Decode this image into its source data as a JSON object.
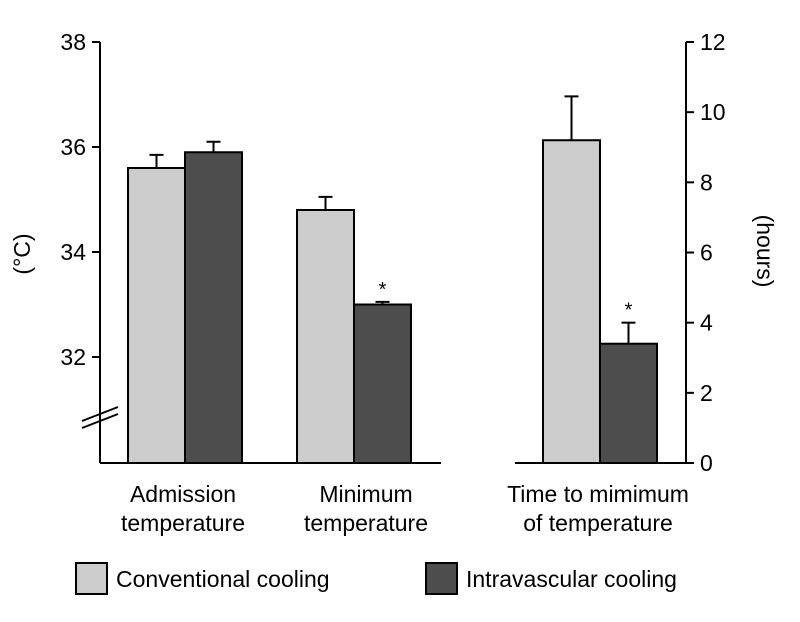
{
  "chart_data": {
    "type": "bar",
    "panels": [
      {
        "axis": "left",
        "ylabel": "(°C)",
        "ylim": [
          30,
          38
        ],
        "yticks": [
          "32",
          "34",
          "36",
          "38"
        ],
        "axis_break": true,
        "categories": [
          {
            "lines": [
              "Admission",
              "temperature"
            ],
            "values": [
              35.6,
              35.9
            ],
            "errors": [
              0.25,
              0.2
            ],
            "significant": [
              false,
              false
            ]
          },
          {
            "lines": [
              "Minimum",
              "temperature"
            ],
            "values": [
              34.8,
              33.0
            ],
            "errors": [
              0.25,
              0.05
            ],
            "significant": [
              false,
              true
            ]
          }
        ]
      },
      {
        "axis": "right",
        "ylabel": "(hours)",
        "ylim": [
          0,
          12
        ],
        "yticks": [
          "0",
          "2",
          "4",
          "6",
          "8",
          "10",
          "12"
        ],
        "categories": [
          {
            "lines": [
              "Time to mimimum",
              "of temperature"
            ],
            "values": [
              9.2,
              3.4
            ],
            "errors": [
              1.25,
              0.6
            ],
            "significant": [
              false,
              true
            ]
          }
        ]
      }
    ],
    "series": [
      {
        "name": "Conventional cooling",
        "color": "#cccccc"
      },
      {
        "name": "Intravascular cooling",
        "color": "#4d4d4d"
      }
    ],
    "significance_marker": "*",
    "legend": "bottom",
    "grid": false
  }
}
